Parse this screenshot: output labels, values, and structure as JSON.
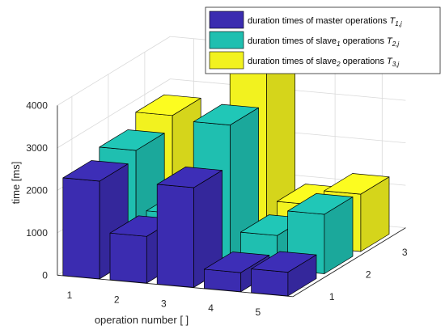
{
  "chart_data": {
    "type": "bar3d",
    "title": "",
    "xlabel": "operation number [ ]",
    "ylabel": "time [ms]",
    "x_ticks": [
      "1",
      "2",
      "3",
      "4",
      "5"
    ],
    "depth_ticks": [
      "1",
      "2",
      "3"
    ],
    "z_ticks": [
      "0",
      "1000",
      "2000",
      "3000",
      "4000"
    ],
    "zlim": [
      0,
      4000
    ],
    "grid": true,
    "legend_position": "top-right",
    "series": [
      {
        "name": "T1,j",
        "legend_text": "duration times of master operations ",
        "legend_symbol": "T",
        "legend_symbol_sub": "1,j",
        "color": "#3B2CB0",
        "values": [
          2300,
          1100,
          2350,
          450,
          560
        ]
      },
      {
        "name": "T2,j",
        "legend_text_a": "duration times of slave",
        "legend_text_sub": "1",
        "legend_text_b": " operations ",
        "legend_symbol": "T",
        "legend_symbol_sub": "2,j",
        "color": "#1FBFB0",
        "values": [
          2500,
          1100,
          3300,
          800,
          1400
        ]
      },
      {
        "name": "T3,j",
        "legend_text_a": "duration times of slave",
        "legend_text_sub": "2",
        "legend_text_b": " operations ",
        "legend_symbol": "T",
        "legend_symbol_sub": "3,j",
        "color": "#F2F21F",
        "values": [
          2800,
          1150,
          4000,
          1000,
          1350
        ]
      }
    ]
  }
}
